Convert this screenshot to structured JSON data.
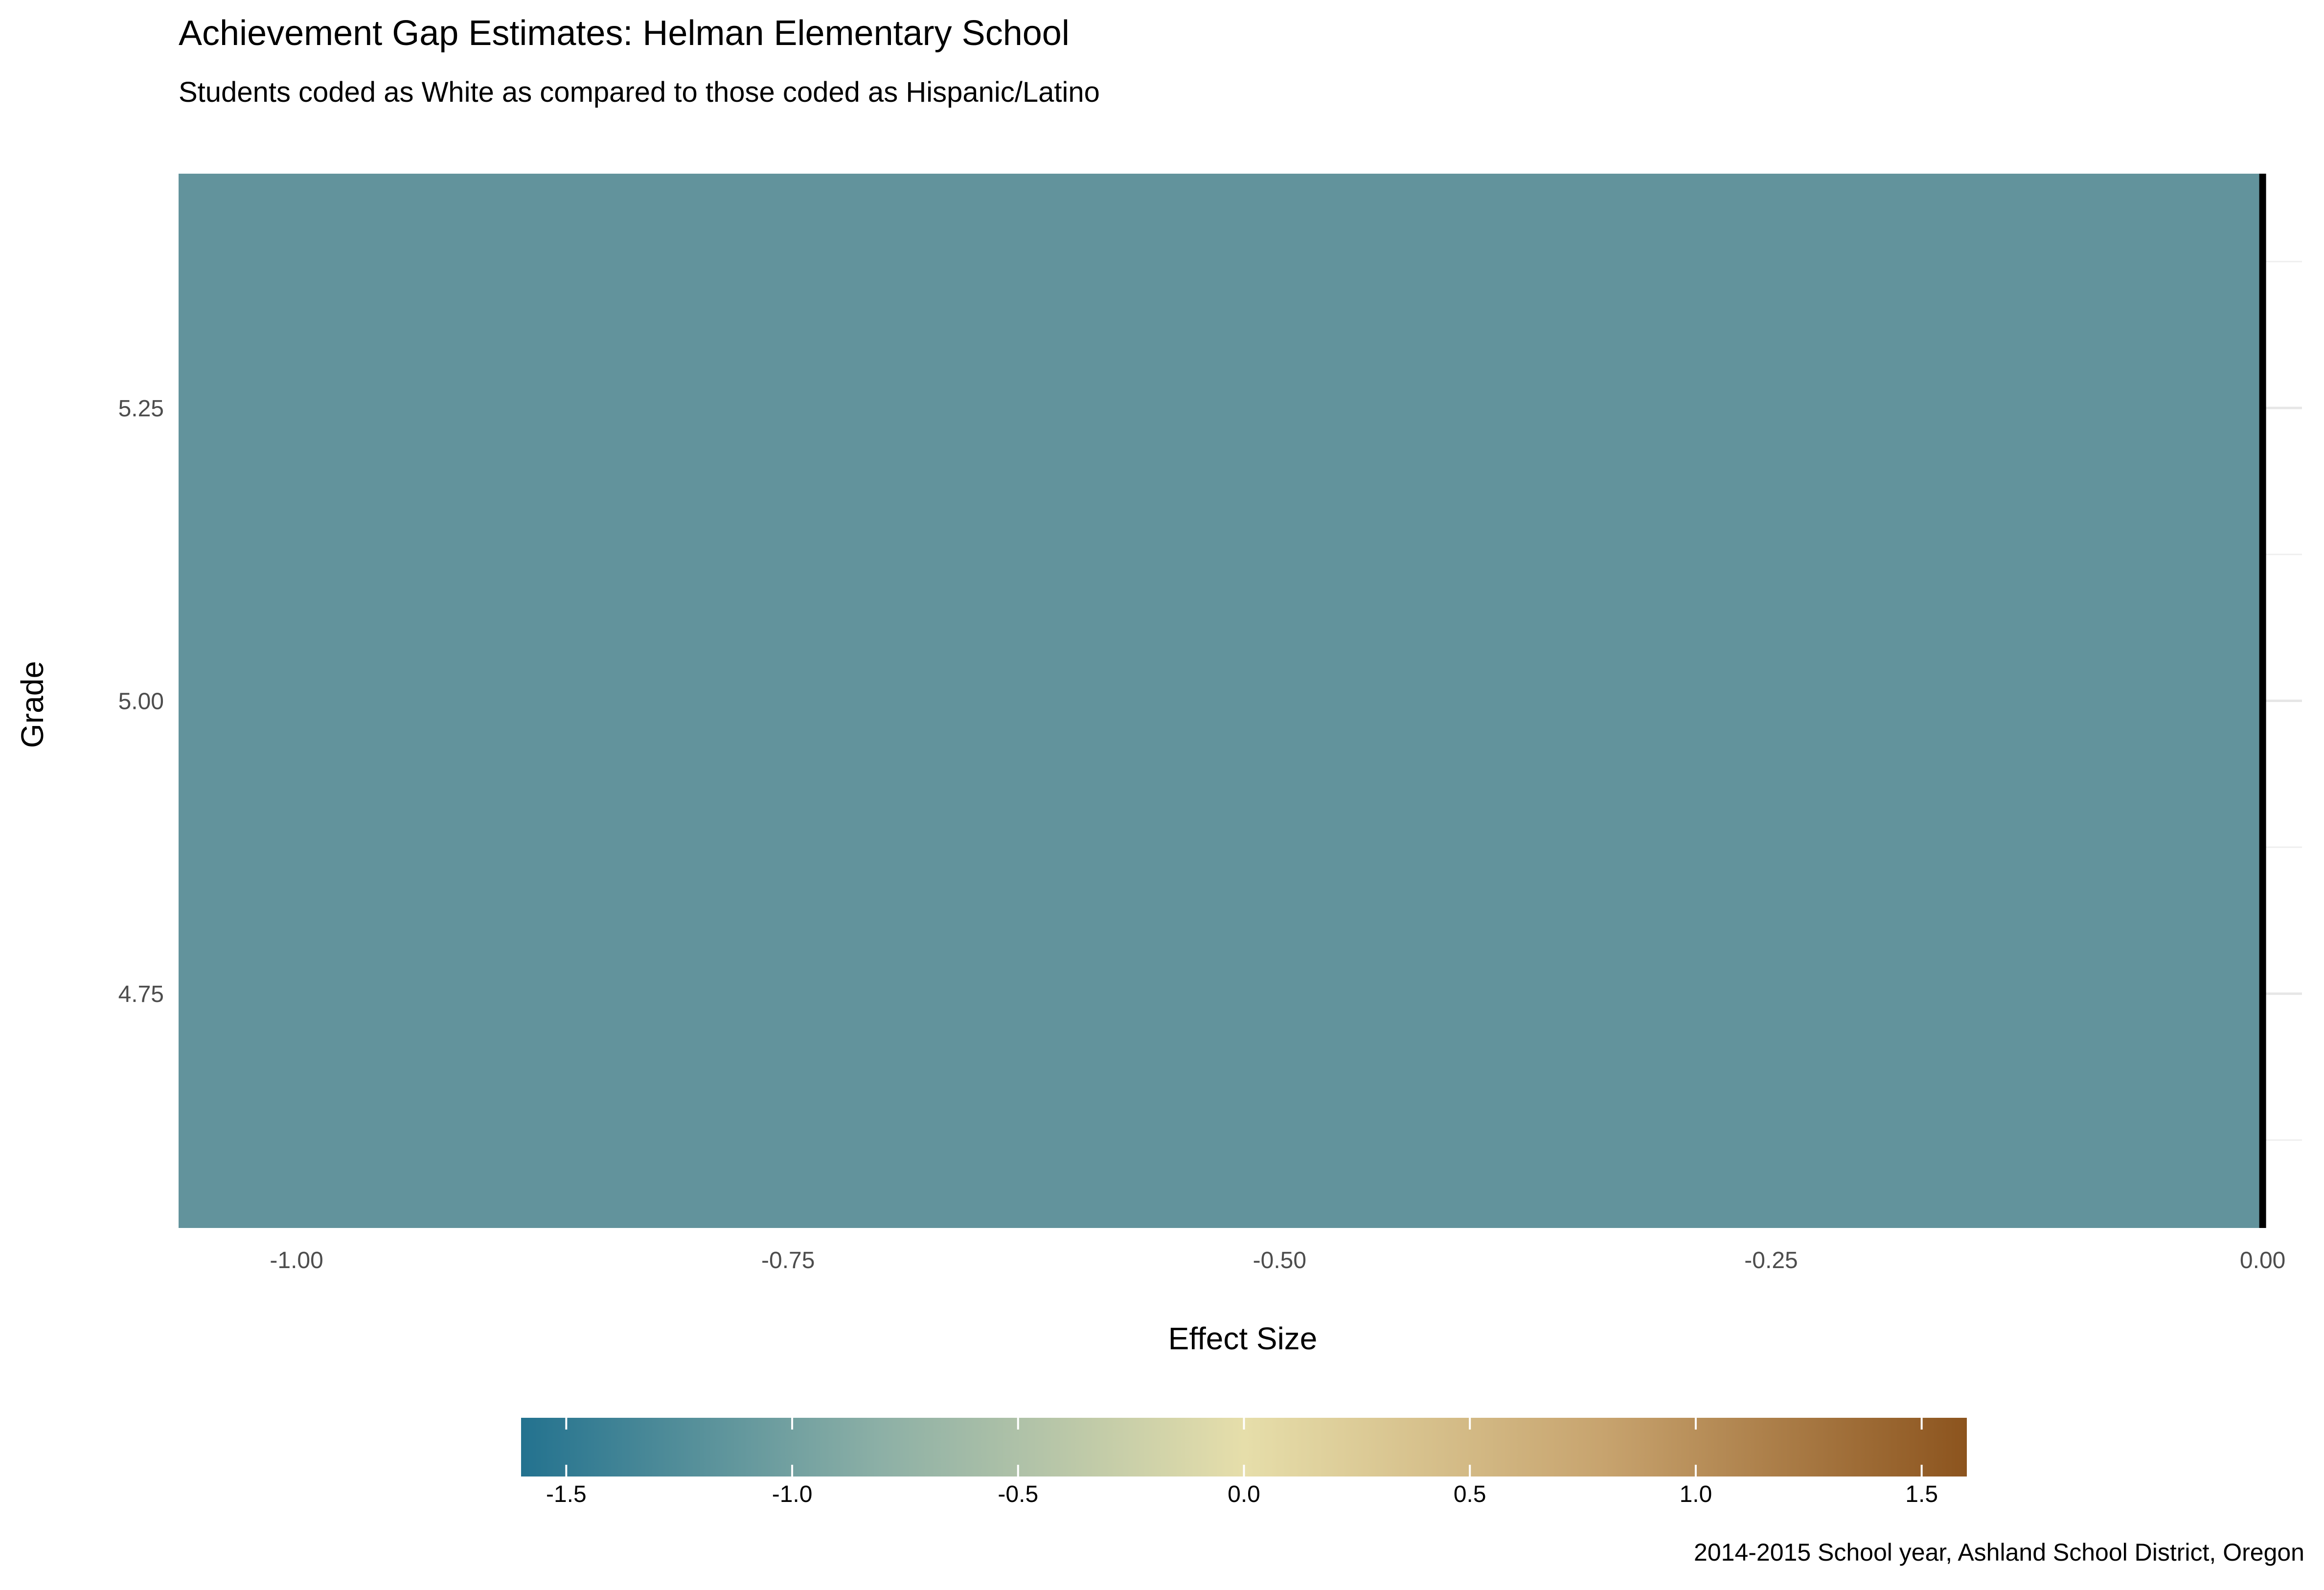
{
  "chart_data": {
    "type": "bar",
    "orientation": "horizontal",
    "title": "Achievement Gap Estimates: Helman Elementary School",
    "subtitle": "Students coded as White as compared to those coded as Hispanic/Latino",
    "xlabel": "Effect Size",
    "ylabel": "Grade",
    "caption": "2014-2015 School year, Ashland   School District, Oregon",
    "xlim": [
      -1.06,
      0.02
    ],
    "ylim": [
      4.55,
      5.45
    ],
    "x_ticks": [
      -1.0,
      -0.75,
      -0.5,
      -0.25,
      0.0
    ],
    "x_tick_labels": [
      "-1.00",
      "-0.75",
      "-0.50",
      "-0.25",
      "0.00"
    ],
    "y_ticks": [
      4.75,
      5.0,
      5.25
    ],
    "y_tick_labels": [
      "4.75",
      "5.00",
      "5.25"
    ],
    "bars": [
      {
        "grade": 5,
        "effect_size": -1.06,
        "bar_height": 0.9,
        "color": "#62939C"
      }
    ],
    "reference_line": {
      "x": 0.0,
      "color": "#000000"
    },
    "grid": true,
    "legend": {
      "position": "bottom",
      "type": "colorbar",
      "range": [
        -1.6,
        1.6
      ],
      "ticks": [
        -1.5,
        -1.0,
        -0.5,
        0.0,
        0.5,
        1.0,
        1.5
      ],
      "tick_labels": [
        "-1.5",
        "-1.0",
        "-0.5",
        "0.0",
        "0.5",
        "1.0",
        "1.5"
      ],
      "colors": [
        "#23728F",
        "#8DB0A6",
        "#E6DEAA",
        "#C7A36E",
        "#8C541E"
      ]
    }
  }
}
